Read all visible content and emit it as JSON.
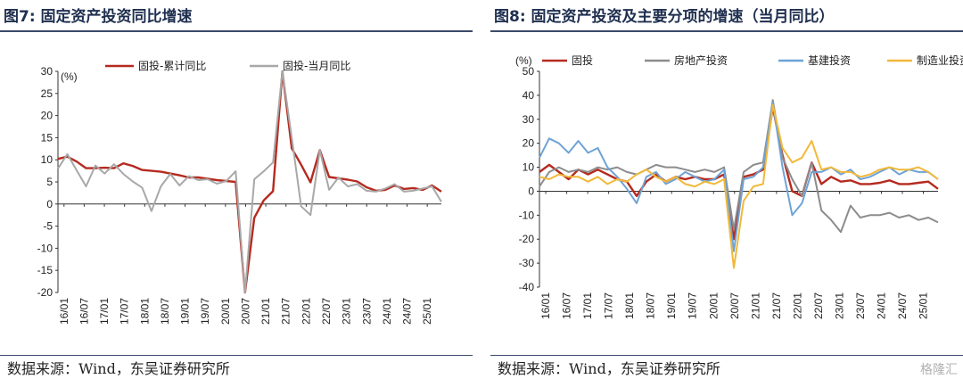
{
  "left": {
    "title": "图7:  固定资产投资同比增速",
    "source": "数据来源：Wind，东吴证券研究所",
    "chart_data": {
      "type": "line",
      "unit_label": "(%)",
      "ylim": [
        -20,
        30
      ],
      "yticks": [
        30,
        25,
        20,
        15,
        10,
        5,
        0,
        -5,
        -10,
        -15,
        -20
      ],
      "xticks": [
        "16/01",
        "16/07",
        "17/01",
        "17/07",
        "18/01",
        "18/07",
        "19/01",
        "19/07",
        "20/01",
        "20/07",
        "21/01",
        "21/07",
        "22/01",
        "22/07",
        "23/01",
        "23/07",
        "24/01",
        "24/07",
        "25/01"
      ],
      "legend_position": "top",
      "series": [
        {
          "name": "固投-累计同比",
          "color": "#b52a1f",
          "points": [
            [
              0,
              10.2
            ],
            [
              1,
              10.7
            ],
            [
              2,
              9.6
            ],
            [
              3,
              8.1
            ],
            [
              4,
              8.1
            ],
            [
              5,
              8.2
            ],
            [
              6,
              8.1
            ],
            [
              7,
              9.2
            ],
            [
              8,
              8.6
            ],
            [
              9,
              7.7
            ],
            [
              10,
              7.5
            ],
            [
              11,
              7.3
            ],
            [
              12,
              6.9
            ],
            [
              13,
              6.5
            ],
            [
              14,
              6.0
            ],
            [
              15,
              6.0
            ],
            [
              16,
              5.7
            ],
            [
              17,
              5.4
            ],
            [
              18,
              5.2
            ],
            [
              19,
              5.0
            ],
            [
              20,
              -24.5
            ],
            [
              21,
              -3.1
            ],
            [
              22,
              0.8
            ],
            [
              23,
              2.9
            ],
            [
              24,
              35.0
            ],
            [
              25,
              12.6
            ],
            [
              26,
              8.9
            ],
            [
              27,
              4.9
            ],
            [
              28,
              12.2
            ],
            [
              29,
              6.1
            ],
            [
              30,
              5.8
            ],
            [
              31,
              5.5
            ],
            [
              32,
              5.1
            ],
            [
              33,
              3.8
            ],
            [
              34,
              3.0
            ],
            [
              35,
              3.2
            ],
            [
              36,
              4.2
            ],
            [
              37,
              3.4
            ],
            [
              38,
              3.6
            ],
            [
              39,
              3.2
            ],
            [
              40,
              4.2
            ],
            [
              41,
              2.8
            ]
          ]
        },
        {
          "name": "固投-当月同比",
          "color": "#a8a8a8",
          "points": [
            [
              0,
              8.0
            ],
            [
              1,
              11.3
            ],
            [
              2,
              7.6
            ],
            [
              3,
              4.0
            ],
            [
              4,
              8.7
            ],
            [
              5,
              6.9
            ],
            [
              6,
              9.0
            ],
            [
              7,
              6.8
            ],
            [
              8,
              5.1
            ],
            [
              9,
              3.7
            ],
            [
              10,
              -1.6
            ],
            [
              11,
              4.0
            ],
            [
              12,
              6.8
            ],
            [
              13,
              4.2
            ],
            [
              14,
              6.3
            ],
            [
              15,
              5.4
            ],
            [
              16,
              5.6
            ],
            [
              17,
              4.6
            ],
            [
              18,
              5.2
            ],
            [
              19,
              7.4
            ],
            [
              20,
              -20.0
            ],
            [
              21,
              5.6
            ],
            [
              22,
              7.4
            ],
            [
              23,
              9.4
            ],
            [
              24,
              35.0
            ],
            [
              25,
              15.0
            ],
            [
              26,
              -0.5
            ],
            [
              27,
              -2.5
            ],
            [
              28,
              12.2
            ],
            [
              29,
              3.2
            ],
            [
              30,
              6.0
            ],
            [
              31,
              4.0
            ],
            [
              32,
              4.5
            ],
            [
              33,
              3.0
            ],
            [
              34,
              2.8
            ],
            [
              35,
              3.5
            ],
            [
              36,
              4.5
            ],
            [
              37,
              2.8
            ],
            [
              38,
              3.0
            ],
            [
              39,
              3.5
            ],
            [
              40,
              4.0
            ],
            [
              41,
              0.5
            ]
          ]
        }
      ]
    }
  },
  "right": {
    "title": "图8:  固定资产投资及主要分项的增速（当月同比）",
    "source": "数据来源：Wind，东吴证券研究所",
    "watermark": "格隆汇",
    "chart_data": {
      "type": "line",
      "unit_label": "(%)",
      "ylim": [
        -40,
        50
      ],
      "yticks": [
        50,
        40,
        30,
        20,
        10,
        0,
        -10,
        -20,
        -30,
        -40
      ],
      "xticks": [
        "16/01",
        "16/07",
        "17/01",
        "17/07",
        "18/01",
        "18/07",
        "19/01",
        "19/07",
        "20/01",
        "20/07",
        "21/01",
        "21/07",
        "22/01",
        "22/07",
        "23/01",
        "23/07",
        "24/01",
        "24/07",
        "25/01"
      ],
      "legend_position": "top",
      "series": [
        {
          "name": "固投",
          "color": "#b52a1f",
          "points": [
            [
              0,
              8
            ],
            [
              1,
              11
            ],
            [
              2,
              8
            ],
            [
              3,
              5
            ],
            [
              4,
              9
            ],
            [
              5,
              7
            ],
            [
              6,
              9
            ],
            [
              7,
              7
            ],
            [
              8,
              5
            ],
            [
              9,
              4
            ],
            [
              10,
              -2
            ],
            [
              11,
              4
            ],
            [
              12,
              7
            ],
            [
              13,
              4
            ],
            [
              14,
              6
            ],
            [
              15,
              5
            ],
            [
              16,
              6
            ],
            [
              17,
              5
            ],
            [
              18,
              5
            ],
            [
              19,
              7
            ],
            [
              20,
              -20
            ],
            [
              21,
              6
            ],
            [
              22,
              7
            ],
            [
              23,
              9
            ],
            [
              24,
              35
            ],
            [
              25,
              15
            ],
            [
              26,
              0
            ],
            [
              27,
              -2
            ],
            [
              28,
              12
            ],
            [
              29,
              3
            ],
            [
              30,
              6
            ],
            [
              31,
              4
            ],
            [
              32,
              4.5
            ],
            [
              33,
              3
            ],
            [
              34,
              3
            ],
            [
              35,
              3.5
            ],
            [
              36,
              4.5
            ],
            [
              37,
              3
            ],
            [
              38,
              3
            ],
            [
              39,
              3.5
            ],
            [
              40,
              4
            ],
            [
              41,
              1
            ]
          ]
        },
        {
          "name": "房地产投资",
          "color": "#8c8c8c",
          "points": [
            [
              0,
              2
            ],
            [
              1,
              8
            ],
            [
              2,
              10
            ],
            [
              3,
              8
            ],
            [
              4,
              9
            ],
            [
              5,
              8
            ],
            [
              6,
              10
            ],
            [
              7,
              9
            ],
            [
              8,
              10
            ],
            [
              9,
              8
            ],
            [
              10,
              7
            ],
            [
              11,
              9
            ],
            [
              12,
              11
            ],
            [
              13,
              10
            ],
            [
              14,
              10
            ],
            [
              15,
              9
            ],
            [
              16,
              8
            ],
            [
              17,
              9
            ],
            [
              18,
              8
            ],
            [
              19,
              10
            ],
            [
              20,
              -16
            ],
            [
              21,
              8
            ],
            [
              22,
              11
            ],
            [
              23,
              12
            ],
            [
              24,
              38
            ],
            [
              25,
              14
            ],
            [
              26,
              5
            ],
            [
              27,
              -2
            ],
            [
              28,
              12
            ],
            [
              29,
              -8
            ],
            [
              30,
              -12
            ],
            [
              31,
              -17
            ],
            [
              32,
              -6
            ],
            [
              33,
              -11
            ],
            [
              34,
              -10
            ],
            [
              35,
              -10
            ],
            [
              36,
              -9
            ],
            [
              37,
              -11
            ],
            [
              38,
              -10
            ],
            [
              39,
              -12
            ],
            [
              40,
              -11
            ],
            [
              41,
              -13
            ]
          ]
        },
        {
          "name": "基建投资",
          "color": "#6ea3d6",
          "points": [
            [
              0,
              14
            ],
            [
              1,
              22
            ],
            [
              2,
              20
            ],
            [
              3,
              16
            ],
            [
              4,
              21
            ],
            [
              5,
              16
            ],
            [
              6,
              18
            ],
            [
              7,
              10
            ],
            [
              8,
              6
            ],
            [
              9,
              1
            ],
            [
              10,
              -5
            ],
            [
              11,
              6
            ],
            [
              12,
              8
            ],
            [
              13,
              3
            ],
            [
              14,
              5
            ],
            [
              15,
              8
            ],
            [
              16,
              6
            ],
            [
              17,
              4
            ],
            [
              18,
              5
            ],
            [
              19,
              9
            ],
            [
              20,
              -25
            ],
            [
              21,
              5
            ],
            [
              22,
              6
            ],
            [
              23,
              10
            ],
            [
              24,
              37
            ],
            [
              25,
              10
            ],
            [
              26,
              -10
            ],
            [
              27,
              -5
            ],
            [
              28,
              8
            ],
            [
              29,
              8
            ],
            [
              30,
              10
            ],
            [
              31,
              7
            ],
            [
              32,
              9
            ],
            [
              33,
              5
            ],
            [
              34,
              6
            ],
            [
              35,
              8
            ],
            [
              36,
              10
            ],
            [
              37,
              7
            ],
            [
              38,
              9
            ],
            [
              39,
              8
            ],
            [
              40,
              8
            ],
            [
              41,
              5
            ]
          ]
        },
        {
          "name": "制造业投资",
          "color": "#f1b93a",
          "points": [
            [
              0,
              6
            ],
            [
              1,
              5
            ],
            [
              2,
              7
            ],
            [
              3,
              6
            ],
            [
              4,
              6
            ],
            [
              5,
              4
            ],
            [
              6,
              6
            ],
            [
              7,
              3
            ],
            [
              8,
              5
            ],
            [
              9,
              4
            ],
            [
              10,
              7
            ],
            [
              11,
              9
            ],
            [
              12,
              6
            ],
            [
              13,
              4
            ],
            [
              14,
              6
            ],
            [
              15,
              3
            ],
            [
              16,
              2
            ],
            [
              17,
              4
            ],
            [
              18,
              3
            ],
            [
              19,
              5
            ],
            [
              20,
              -32
            ],
            [
              21,
              -4
            ],
            [
              22,
              2
            ],
            [
              23,
              3
            ],
            [
              24,
              36
            ],
            [
              25,
              18
            ],
            [
              26,
              12
            ],
            [
              27,
              14
            ],
            [
              28,
              21
            ],
            [
              29,
              9
            ],
            [
              30,
              10
            ],
            [
              31,
              8
            ],
            [
              32,
              8
            ],
            [
              33,
              6
            ],
            [
              34,
              7
            ],
            [
              35,
              9
            ],
            [
              36,
              10
            ],
            [
              37,
              9
            ],
            [
              38,
              9
            ],
            [
              39,
              10
            ],
            [
              40,
              8
            ],
            [
              41,
              5
            ]
          ]
        }
      ]
    }
  }
}
